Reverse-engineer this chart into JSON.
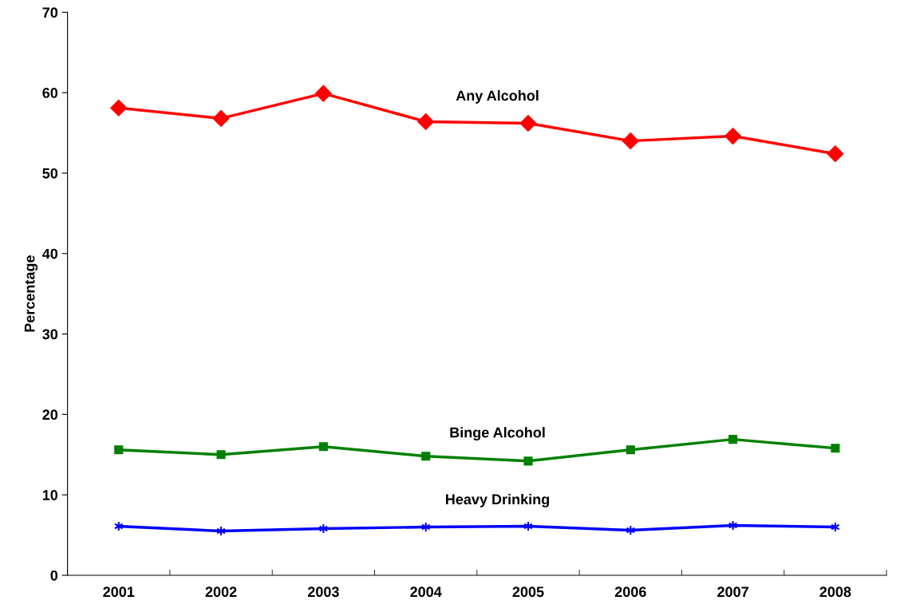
{
  "chart_data": {
    "type": "line",
    "ylabel": "Percentage",
    "categories": [
      "2001",
      "2002",
      "2003",
      "2004",
      "2005",
      "2006",
      "2007",
      "2008"
    ],
    "series": [
      {
        "name": "Any Alcohol",
        "color": "#ff0000",
        "marker": "diamond",
        "values": [
          58.1,
          56.8,
          59.9,
          56.4,
          56.2,
          54.0,
          54.6,
          52.4
        ]
      },
      {
        "name": "Binge Alcohol",
        "color": "#008000",
        "marker": "square",
        "values": [
          15.6,
          15.0,
          16.0,
          14.8,
          14.2,
          15.6,
          16.9,
          15.8
        ]
      },
      {
        "name": "Heavy Drinking",
        "color": "#0000ff",
        "marker": "cross",
        "values": [
          6.1,
          5.5,
          5.8,
          6.0,
          6.1,
          5.6,
          6.2,
          6.0
        ]
      }
    ],
    "ylim": [
      0,
      70
    ],
    "yticks": [
      0,
      10,
      20,
      30,
      40,
      50,
      60,
      70
    ],
    "grid": false,
    "legend": false,
    "line_style": "solid"
  }
}
